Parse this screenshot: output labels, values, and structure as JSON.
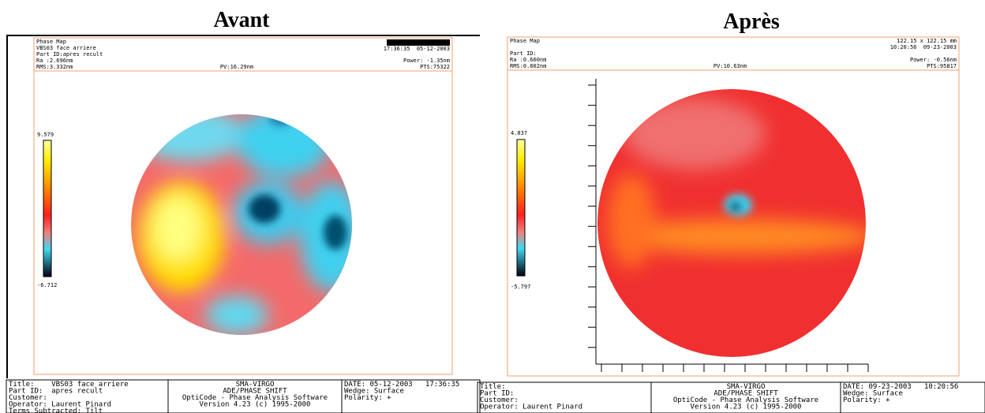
{
  "left": {
    "title": "Avant",
    "header": {
      "name": "Phase Map",
      "id": "VBS03 face arriere",
      "part": "Part ID:apres recult",
      "ra": "Ra :2.696nm",
      "rms": "RMS:3.332nm",
      "pv": "PV:16.29nm",
      "time": "17:36:35  05-12-2003",
      "power": "Power: -1.35nm",
      "pts": "PTS:75322"
    },
    "scale": {
      "max": "9.579",
      "min": "-6.712"
    },
    "footer": {
      "left": [
        "Title:    VBS03 face arriere",
        "Part ID:  apres recult",
        "Customer:",
        "Operator: Laurent Pinard",
        "Terms Subtracted: Tilt"
      ],
      "middle": [
        "SMA-VIRGO",
        "ADE/PHASE SHIFT",
        "OptiCode - Phase Analysis Software",
        "Version 4.23 (c) 1995-2000"
      ],
      "right": [
        "DATE: 05-12-2003   17:36:35",
        "Wedge: Surface",
        "Polarity: +"
      ]
    }
  },
  "right": {
    "title": "Après",
    "header": {
      "name": "Phase Map",
      "part": "Part ID:",
      "ra": "Ra :0.660nm",
      "rms": "RMS:0.802nm",
      "pv": "PV:10.63nm",
      "size": "122.15 x 122.15 mm",
      "time": "10:20:56  09-23-2003",
      "power": "Power: -0.56nm",
      "pts": "PTS:95817"
    },
    "scale": {
      "max": "4.837",
      "min": "-5.797"
    },
    "footer": {
      "left": [
        "Title:",
        "Part ID:",
        "Customer:",
        "Operator: Laurent Pinard"
      ],
      "middle": [
        "SMA-VIRGO",
        "ADE/PHASE SHIFT",
        "OptiCode - Phase Analysis Software",
        "Version 4.23 (c) 1995-2000"
      ],
      "right": [
        "DATE: 09-23-2003   10:20:56",
        "Wedge: Surface",
        "Polarity: +"
      ]
    }
  }
}
